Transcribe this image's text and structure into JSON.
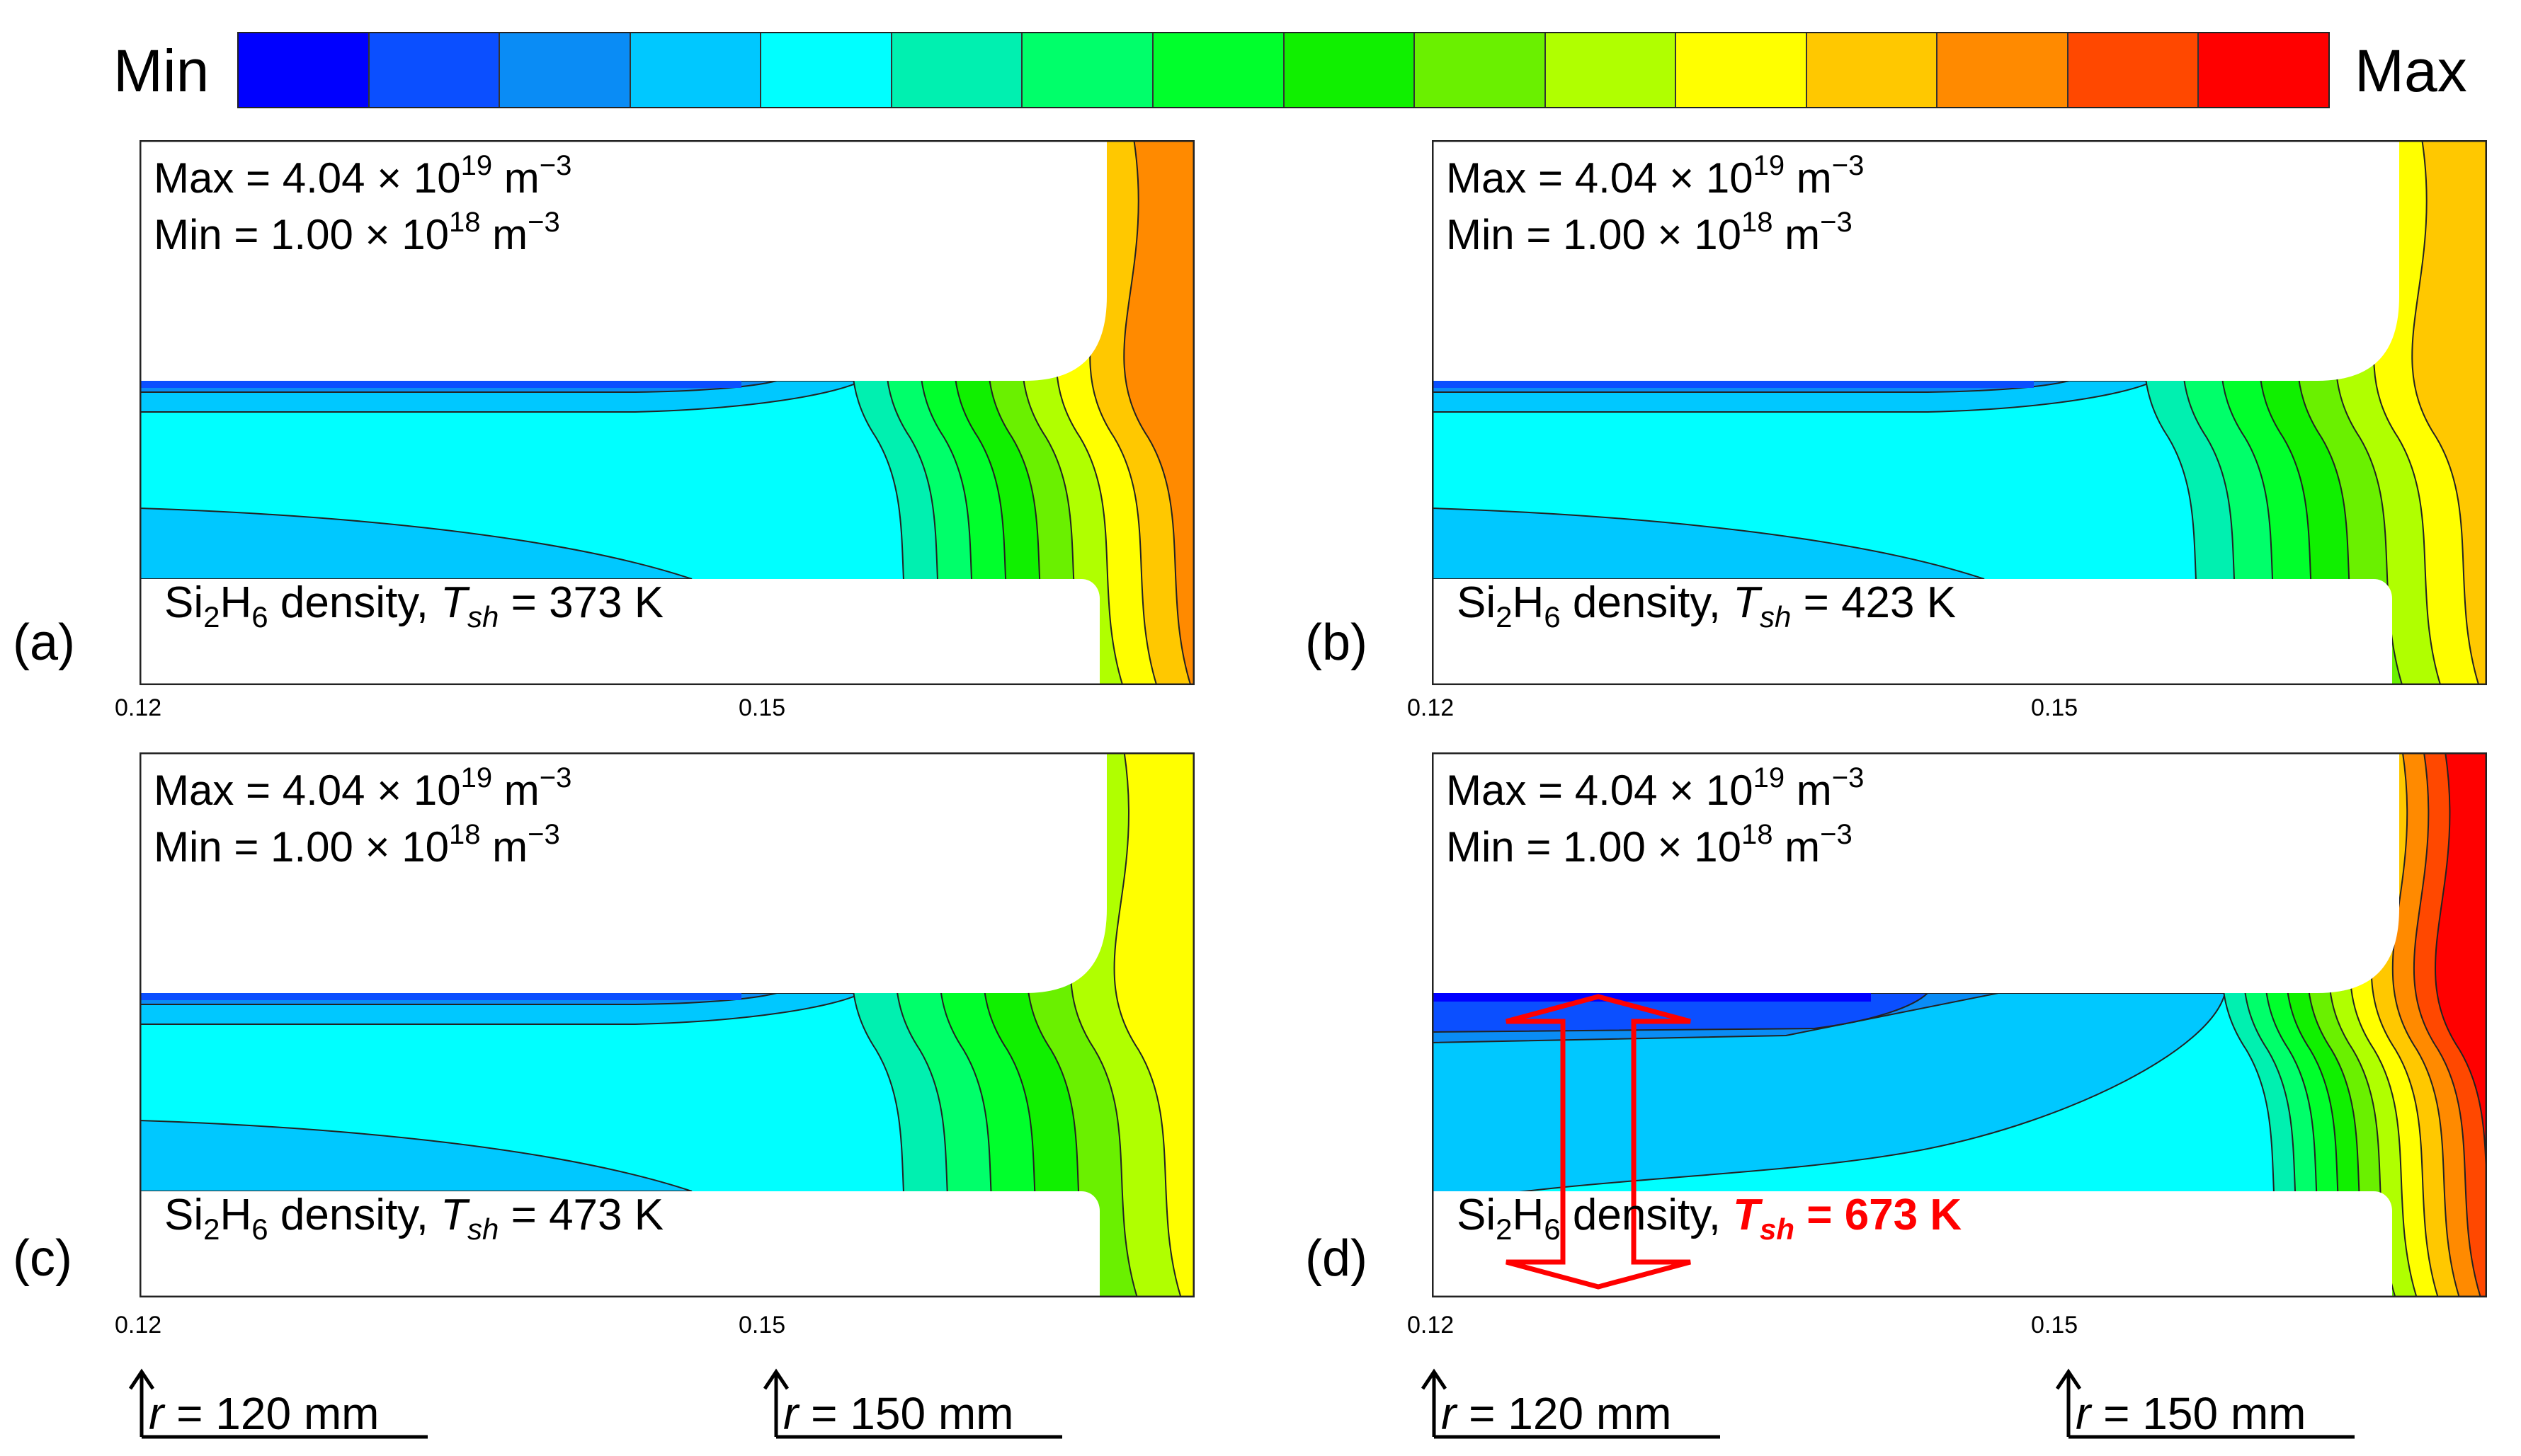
{
  "colorbar": {
    "min_label": "Min",
    "max_label": "Max",
    "colors": [
      "#0000ff",
      "#0b4fff",
      "#0a8cf5",
      "#00c8ff",
      "#00ffff",
      "#00f0b0",
      "#00ff6a",
      "#00ff2c",
      "#10f000",
      "#6af000",
      "#b0ff00",
      "#ffff00",
      "#ffc800",
      "#ff8a00",
      "#ff4800",
      "#ff0000"
    ]
  },
  "chart_data": [
    {
      "type": "contour",
      "panel_label": "(a)",
      "title_species": "Si",
      "title_sub1": "2",
      "title_species2": "H",
      "title_sub2": "6",
      "title_rest": " density, ",
      "tvar": "T",
      "tsub": "sh",
      "tvalue": " = 373 K",
      "max_text": "Max = 4.04 × 10",
      "max_exp": "19",
      "max_unit": " m",
      "max_unit_exp": "−3",
      "min_text": "Min = 1.00 × 10",
      "min_exp": "18",
      "min_unit": " m",
      "min_unit_exp": "−3",
      "x_ticks": [
        "0.12",
        "0.15"
      ],
      "r_markers": [
        "r = 120 mm",
        "r = 150 mm"
      ]
    },
    {
      "type": "contour",
      "panel_label": "(b)",
      "title_species": "Si",
      "title_sub1": "2",
      "title_species2": "H",
      "title_sub2": "6",
      "title_rest": " density, ",
      "tvar": "T",
      "tsub": "sh",
      "tvalue": " = 423 K",
      "max_text": "Max = 4.04 × 10",
      "max_exp": "19",
      "max_unit": " m",
      "max_unit_exp": "−3",
      "min_text": "Min = 1.00 × 10",
      "min_exp": "18",
      "min_unit": " m",
      "min_unit_exp": "−3",
      "x_ticks": [
        "0.12",
        "0.15"
      ]
    },
    {
      "type": "contour",
      "panel_label": "(c)",
      "title_species": "Si",
      "title_sub1": "2",
      "title_species2": "H",
      "title_sub2": "6",
      "title_rest": " density, ",
      "tvar": "T",
      "tsub": "sh",
      "tvalue": " = 473 K",
      "max_text": "Max = 4.04 × 10",
      "max_exp": "19",
      "max_unit": " m",
      "max_unit_exp": "−3",
      "min_text": "Min = 1.00 × 10",
      "min_exp": "18",
      "min_unit": " m",
      "min_unit_exp": "−3",
      "x_ticks": [
        "0.12",
        "0.15"
      ]
    },
    {
      "type": "contour",
      "panel_label": "(d)",
      "title_species": "Si",
      "title_sub1": "2",
      "title_species2": "H",
      "title_sub2": "6",
      "title_rest": " density, ",
      "tvar": "T",
      "tsub": "sh",
      "tvalue": " = 673 K",
      "max_text": "Max = 4.04 × 10",
      "max_exp": "19",
      "max_unit": " m",
      "max_unit_exp": "−3",
      "min_text": "Min = 1.00 × 10",
      "min_exp": "18",
      "min_unit": " m",
      "min_unit_exp": "−3",
      "x_ticks": [
        "0.12",
        "0.15"
      ]
    }
  ],
  "markers": {
    "r120_var": "r",
    "r120_rest": " = 120 mm",
    "r150_var": "r",
    "r150_rest": " = 150 mm"
  }
}
